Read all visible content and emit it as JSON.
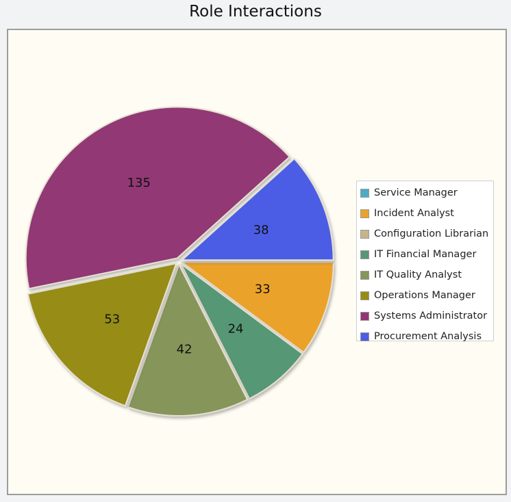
{
  "chart_data": {
    "type": "pie",
    "title": "Role Interactions",
    "categories": [
      "Service Manager",
      "Incident Analyst",
      "Configuration Librarian",
      "IT Financial Manager",
      "IT Quality Analyst",
      "Operations Manager",
      "Systems Administrator",
      "Procurement Analysis"
    ],
    "values": [
      0,
      33,
      0,
      24,
      42,
      53,
      135,
      38
    ],
    "colors": [
      "#4bacc6",
      "#eba229",
      "#c8b48a",
      "#579775",
      "#86955a",
      "#968c12",
      "#913775",
      "#4b5de4"
    ],
    "data_labels": [
      "",
      "33",
      "",
      "24",
      "42",
      "53",
      "135",
      "38"
    ],
    "legend_position": "right"
  }
}
